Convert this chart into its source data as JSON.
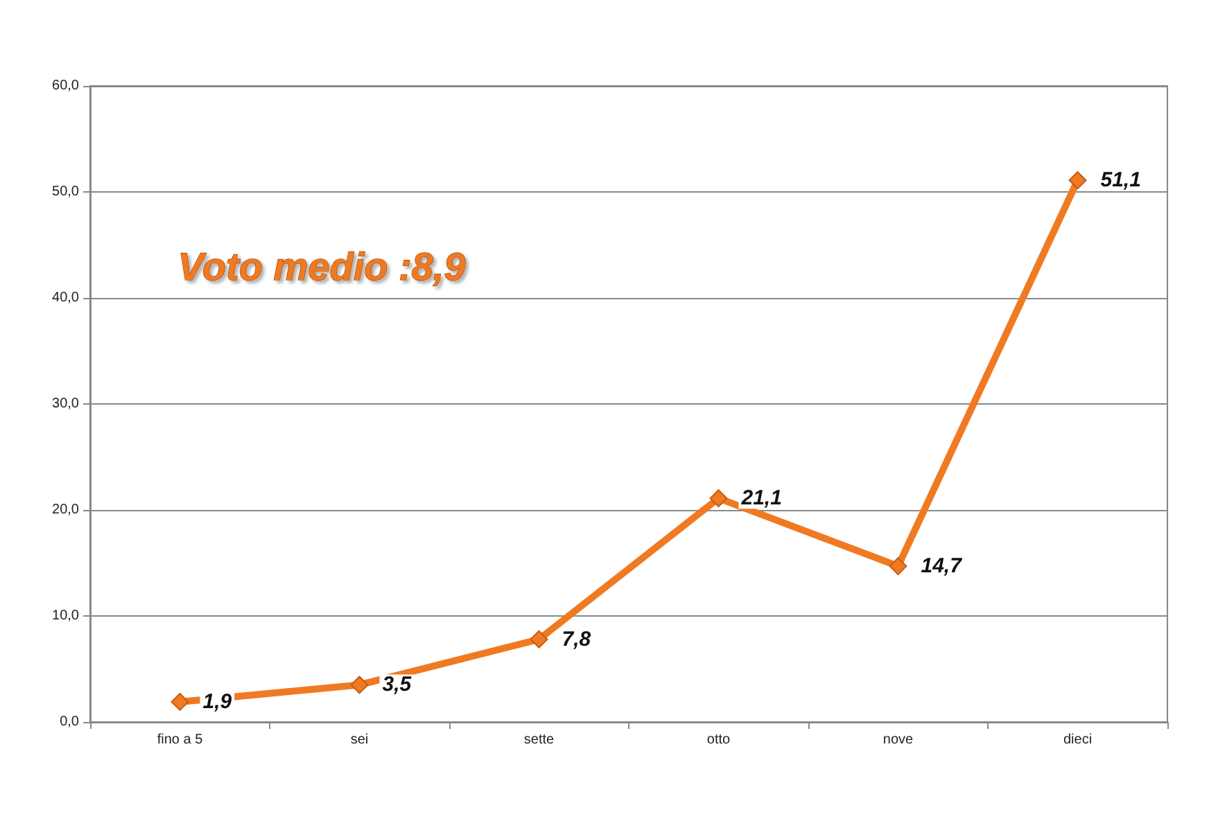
{
  "chart_data": {
    "type": "line",
    "annotations": [
      "Voto medio :8,9"
    ],
    "categories": [
      "fino a 5",
      "sei",
      "sette",
      "otto",
      "nove",
      "dieci"
    ],
    "series": [
      {
        "color": "#f07a22",
        "values": [
          1.9,
          3.5,
          7.8,
          21.1,
          14.7,
          51.1
        ],
        "value_labels": [
          "1,9",
          "3,5",
          "7,8",
          "21,1",
          "14,7",
          "51,1"
        ]
      }
    ],
    "ylim": [
      0,
      60
    ],
    "yticks": [
      {
        "value": 0,
        "label": "0,0"
      },
      {
        "value": 10,
        "label": "10,0"
      },
      {
        "value": 20,
        "label": "20,0"
      },
      {
        "value": 30,
        "label": "30,0"
      },
      {
        "value": 40,
        "label": "40,0"
      },
      {
        "value": 50,
        "label": "50,0"
      },
      {
        "value": 60,
        "label": "60,0"
      }
    ],
    "grid": "y",
    "marker": "diamond",
    "line_style": "solid"
  }
}
